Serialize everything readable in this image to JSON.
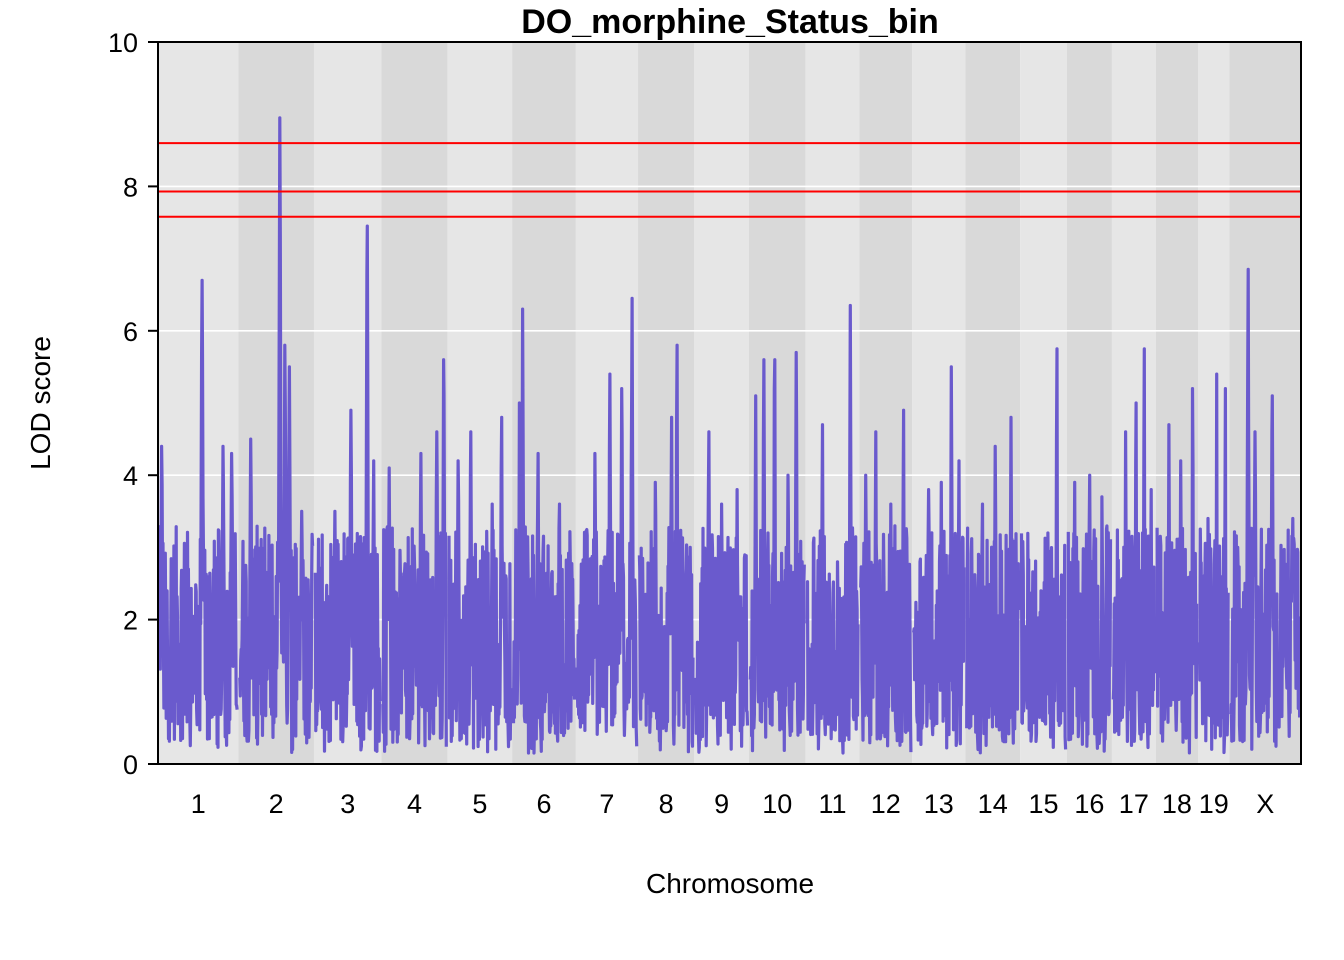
{
  "chart_data": {
    "type": "line",
    "title": "DO_morphine_Status_bin",
    "xlabel": "Chromosome",
    "ylabel": "LOD score",
    "ylim": [
      0,
      10
    ],
    "yticks": [
      0,
      2,
      4,
      6,
      8,
      10
    ],
    "grid": true,
    "colors": {
      "line": "#6a5acd",
      "threshold": "#ff0000",
      "band_light": "#e6e6e6",
      "band_dark": "#d9d9d9",
      "grid": "#ffffff",
      "frame": "#000000"
    },
    "thresholds": [
      7.58,
      7.93,
      8.6
    ],
    "chromosomes": [
      {
        "label": "1",
        "len": 195.5,
        "peaks": [
          [
            0.03,
            4.4
          ],
          [
            0.55,
            6.7
          ],
          [
            0.82,
            4.4
          ],
          [
            0.93,
            4.3
          ]
        ]
      },
      {
        "label": "2",
        "len": 182.1,
        "peaks": [
          [
            0.15,
            4.5
          ],
          [
            0.55,
            8.95
          ],
          [
            0.62,
            5.8
          ],
          [
            0.68,
            5.5
          ],
          [
            0.85,
            3.5
          ]
        ]
      },
      {
        "label": "3",
        "len": 160.0,
        "peaks": [
          [
            0.3,
            3.5
          ],
          [
            0.55,
            4.9
          ],
          [
            0.8,
            7.45
          ],
          [
            0.9,
            4.2
          ]
        ]
      },
      {
        "label": "4",
        "len": 156.5,
        "peaks": [
          [
            0.1,
            4.1
          ],
          [
            0.6,
            4.3
          ],
          [
            0.85,
            4.6
          ],
          [
            0.96,
            5.6
          ]
        ]
      },
      {
        "label": "5",
        "len": 151.8,
        "peaks": [
          [
            0.15,
            4.2
          ],
          [
            0.35,
            4.6
          ],
          [
            0.7,
            3.6
          ],
          [
            0.85,
            4.8
          ]
        ]
      },
      {
        "label": "6",
        "len": 149.7,
        "peaks": [
          [
            0.1,
            5.0
          ],
          [
            0.15,
            6.3
          ],
          [
            0.4,
            4.3
          ],
          [
            0.75,
            3.6
          ]
        ]
      },
      {
        "label": "7",
        "len": 145.4,
        "peaks": [
          [
            0.3,
            4.3
          ],
          [
            0.55,
            5.4
          ],
          [
            0.75,
            5.2
          ],
          [
            0.92,
            6.45
          ]
        ]
      },
      {
        "label": "8",
        "len": 129.4,
        "peaks": [
          [
            0.3,
            3.9
          ],
          [
            0.6,
            4.8
          ],
          [
            0.7,
            5.8
          ],
          [
            0.95,
            3.0
          ]
        ]
      },
      {
        "label": "9",
        "len": 124.6,
        "peaks": [
          [
            0.25,
            4.6
          ],
          [
            0.5,
            3.6
          ],
          [
            0.8,
            3.8
          ]
        ]
      },
      {
        "label": "10",
        "len": 130.7,
        "peaks": [
          [
            0.1,
            5.1
          ],
          [
            0.25,
            5.6
          ],
          [
            0.45,
            5.6
          ],
          [
            0.7,
            4.0
          ],
          [
            0.85,
            5.7
          ]
        ]
      },
      {
        "label": "11",
        "len": 122.1,
        "peaks": [
          [
            0.3,
            4.7
          ],
          [
            0.6,
            2.8
          ],
          [
            0.85,
            6.35
          ]
        ]
      },
      {
        "label": "12",
        "len": 120.1,
        "peaks": [
          [
            0.1,
            4.0
          ],
          [
            0.3,
            4.6
          ],
          [
            0.6,
            3.6
          ],
          [
            0.85,
            4.9
          ]
        ]
      },
      {
        "label": "13",
        "len": 120.4,
        "peaks": [
          [
            0.3,
            3.8
          ],
          [
            0.55,
            3.9
          ],
          [
            0.75,
            5.5
          ],
          [
            0.9,
            4.2
          ]
        ]
      },
      {
        "label": "14",
        "len": 125.2,
        "peaks": [
          [
            0.3,
            3.6
          ],
          [
            0.55,
            4.4
          ],
          [
            0.85,
            4.8
          ]
        ]
      },
      {
        "label": "15",
        "len": 103.5,
        "peaks": [
          [
            0.3,
            2.6
          ],
          [
            0.6,
            3.2
          ],
          [
            0.8,
            5.75
          ]
        ]
      },
      {
        "label": "16",
        "len": 98.2,
        "peaks": [
          [
            0.15,
            3.9
          ],
          [
            0.5,
            4.0
          ],
          [
            0.8,
            3.7
          ]
        ]
      },
      {
        "label": "17",
        "len": 95.2,
        "peaks": [
          [
            0.3,
            4.6
          ],
          [
            0.55,
            5.0
          ],
          [
            0.75,
            5.75
          ],
          [
            0.92,
            3.8
          ]
        ]
      },
      {
        "label": "18",
        "len": 90.8,
        "peaks": [
          [
            0.3,
            4.7
          ],
          [
            0.6,
            4.2
          ],
          [
            0.9,
            5.2
          ]
        ]
      },
      {
        "label": "19",
        "len": 61.4,
        "peaks": [
          [
            0.3,
            3.4
          ],
          [
            0.6,
            5.4
          ],
          [
            0.9,
            5.2
          ]
        ]
      },
      {
        "label": "X",
        "len": 171.0,
        "peaks": [
          [
            0.1,
            3.0
          ],
          [
            0.25,
            6.85
          ],
          [
            0.35,
            4.6
          ],
          [
            0.6,
            5.1
          ],
          [
            0.9,
            3.4
          ]
        ]
      }
    ]
  }
}
